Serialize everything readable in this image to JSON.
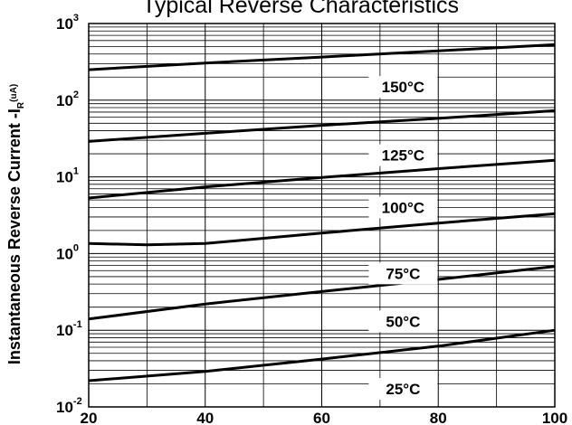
{
  "chart_data": {
    "type": "line",
    "title": "Typical Reverse Characteristics",
    "ylabel": {
      "main": "Instantaneous Reverse Current -I",
      "subscript": "R",
      "unit": "(uA)"
    },
    "xlabel": "",
    "x_scale": "linear",
    "y_scale": "log",
    "xlim": [
      20,
      100
    ],
    "ylim": [
      0.01,
      1000
    ],
    "x_ticks": [
      "20",
      "40",
      "60",
      "80",
      "100"
    ],
    "y_ticks": [
      {
        "base": "10",
        "exp": "-2"
      },
      {
        "base": "10",
        "exp": "-1"
      },
      {
        "base": "10",
        "exp": "0"
      },
      {
        "base": "10",
        "exp": "1"
      },
      {
        "base": "10",
        "exp": "2"
      },
      {
        "base": "10",
        "exp": "3"
      }
    ],
    "grid": true,
    "series": [
      {
        "name": "150°C",
        "x": [
          20,
          40,
          60,
          80,
          100
        ],
        "y": [
          250,
          305,
          365,
          440,
          530
        ]
      },
      {
        "name": "125°C",
        "x": [
          20,
          40,
          60,
          80,
          100
        ],
        "y": [
          29,
          37,
          47,
          58,
          73
        ]
      },
      {
        "name": "100°C",
        "x": [
          20,
          40,
          60,
          80,
          100
        ],
        "y": [
          5.3,
          7.4,
          9.8,
          12.8,
          16.5
        ]
      },
      {
        "name": "75°C",
        "x": [
          20,
          30,
          40,
          60,
          80,
          100
        ],
        "y": [
          1.35,
          1.3,
          1.35,
          1.85,
          2.5,
          3.3
        ]
      },
      {
        "name": "50°C",
        "x": [
          20,
          40,
          60,
          80,
          100
        ],
        "y": [
          0.14,
          0.22,
          0.32,
          0.46,
          0.68
        ]
      },
      {
        "name": "25°C",
        "x": [
          20,
          40,
          60,
          80,
          100
        ],
        "y": [
          0.022,
          0.029,
          0.042,
          0.062,
          0.1
        ]
      }
    ]
  }
}
